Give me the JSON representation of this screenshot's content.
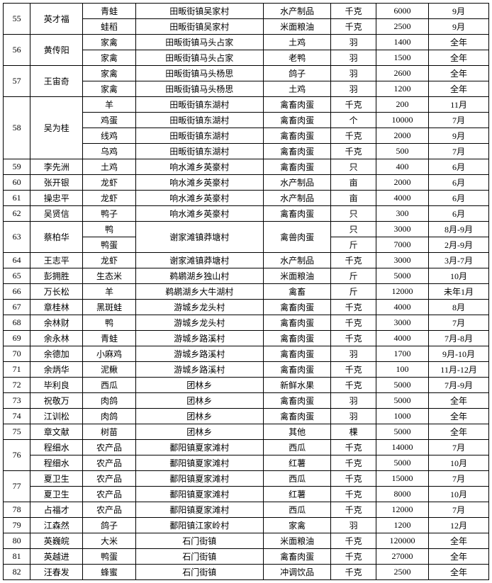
{
  "columns": [
    "idx",
    "name",
    "prod",
    "loc",
    "type",
    "unit",
    "qty",
    "date"
  ],
  "rows": [
    {
      "idx": "55",
      "name": "英才福",
      "prod": "青蛙",
      "loc": "田畈街镇吴家村",
      "type": "水产制品",
      "unit": "千克",
      "qty": "6000",
      "date": "9月",
      "idx_rs": 2,
      "name_rs": 2
    },
    {
      "prod": "蛙稻",
      "loc": "田畈街镇吴家村",
      "type": "米面粮油",
      "unit": "千克",
      "qty": "2500",
      "date": "9月"
    },
    {
      "idx": "56",
      "name": "黄传阳",
      "prod": "家禽",
      "loc": "田畈街镇马头占家",
      "type": "土鸡",
      "unit": "羽",
      "qty": "1400",
      "date": "全年",
      "idx_rs": 2,
      "name_rs": 2
    },
    {
      "prod": "家禽",
      "loc": "田畈街镇马头占家",
      "type": "老鸭",
      "unit": "羽",
      "qty": "1500",
      "date": "全年"
    },
    {
      "idx": "57",
      "name": "王宙奇",
      "prod": "家禽",
      "loc": "田畈街镇马头杨思",
      "type": "鸽子",
      "unit": "羽",
      "qty": "2600",
      "date": "全年",
      "idx_rs": 2,
      "name_rs": 2
    },
    {
      "prod": "家禽",
      "loc": "田畈街镇马头杨思",
      "type": "土鸡",
      "unit": "羽",
      "qty": "1200",
      "date": "全年"
    },
    {
      "idx": "58",
      "name": "吴为桂",
      "prod": "羊",
      "loc": "田畈街镇东湖村",
      "type": "禽畜肉蛋",
      "unit": "千克",
      "qty": "200",
      "date": "11月",
      "idx_rs": 4,
      "name_rs": 4
    },
    {
      "prod": "鸡蛋",
      "loc": "田畈街镇东湖村",
      "type": "禽畜肉蛋",
      "unit": "个",
      "qty": "10000",
      "date": "7月"
    },
    {
      "prod": "线鸡",
      "loc": "田畈街镇东湖村",
      "type": "禽畜肉蛋",
      "unit": "千克",
      "qty": "2000",
      "date": "9月"
    },
    {
      "prod": "乌鸡",
      "loc": "田畈街镇东湖村",
      "type": "禽畜肉蛋",
      "unit": "千克",
      "qty": "500",
      "date": "7月"
    },
    {
      "idx": "59",
      "name": "李先洲",
      "prod": "土鸡",
      "loc": "响水滩乡英豪村",
      "type": "禽畜肉蛋",
      "unit": "只",
      "qty": "400",
      "date": "6月"
    },
    {
      "idx": "60",
      "name": "张开银",
      "prod": "龙虾",
      "loc": "响水滩乡英豪村",
      "type": "水产制品",
      "unit": "亩",
      "qty": "2000",
      "date": "6月"
    },
    {
      "idx": "61",
      "name": "操忠平",
      "prod": "龙虾",
      "loc": "响水滩乡英豪村",
      "type": "水产制品",
      "unit": "亩",
      "qty": "4000",
      "date": "6月"
    },
    {
      "idx": "62",
      "name": "吴贤信",
      "prod": "鸭子",
      "loc": "响水滩乡英豪村",
      "type": "禽畜肉蛋",
      "unit": "只",
      "qty": "300",
      "date": "6月"
    },
    {
      "idx": "63",
      "name": "蔡柏华",
      "prod": "鸭",
      "loc": "谢家滩镇莽塘村",
      "type": "禽兽肉蛋",
      "unit": "只",
      "qty": "3000",
      "date": "8月-9月",
      "idx_rs": 2,
      "name_rs": 2,
      "loc_rs": 2,
      "type_rs": 2
    },
    {
      "prod": "鸭蛋",
      "unit": "斤",
      "qty": "7000",
      "date": "2月-9月"
    },
    {
      "idx": "64",
      "name": "王志平",
      "prod": "龙虾",
      "loc": "谢家滩镇莽塘村",
      "type": "水产制品",
      "unit": "千克",
      "qty": "3000",
      "date": "3月-7月"
    },
    {
      "idx": "65",
      "name": "彭拥胜",
      "prod": "生态米",
      "loc": "鹈鹕湖乡独山村",
      "type": "米面粮油",
      "unit": "斤",
      "qty": "5000",
      "date": "10月"
    },
    {
      "idx": "66",
      "name": "万长松",
      "prod": "羊",
      "loc": "鹈鹕湖乡大牛湖村",
      "type": "禽畜",
      "unit": "斤",
      "qty": "12000",
      "date": "未年1月"
    },
    {
      "idx": "67",
      "name": "章桂林",
      "prod": "黑斑蛙",
      "loc": "游城乡龙头村",
      "type": "禽畜肉蛋",
      "unit": "千克",
      "qty": "4000",
      "date": "8月",
      "dashed": true
    },
    {
      "idx": "68",
      "name": "余林财",
      "prod": "鸭",
      "loc": "游城乡龙头村",
      "type": "禽畜肉蛋",
      "unit": "千克",
      "qty": "3000",
      "date": "7月"
    },
    {
      "idx": "69",
      "name": "余永林",
      "prod": "青蛙",
      "loc": "游城乡路溪村",
      "type": "禽畜肉蛋",
      "unit": "千克",
      "qty": "4000",
      "date": "7月-8月"
    },
    {
      "idx": "70",
      "name": "余德加",
      "prod": "小麻鸡",
      "loc": "游城乡路溪村",
      "type": "禽畜肉蛋",
      "unit": "羽",
      "qty": "1700",
      "date": "9月-10月"
    },
    {
      "idx": "71",
      "name": "余炳华",
      "prod": "泥鳅",
      "loc": "游城乡路溪村",
      "type": "禽畜肉蛋",
      "unit": "千克",
      "qty": "100",
      "date": "11月-12月"
    },
    {
      "idx": "72",
      "name": "毕利良",
      "prod": "西瓜",
      "loc": "团林乡",
      "type": "新鲜水果",
      "unit": "千克",
      "qty": "5000",
      "date": "7月-9月"
    },
    {
      "idx": "73",
      "name": "祝敬万",
      "prod": "肉鸽",
      "loc": "团林乡",
      "type": "禽畜肉蛋",
      "unit": "羽",
      "qty": "5000",
      "date": "全年"
    },
    {
      "idx": "74",
      "name": "江训松",
      "prod": "肉鸽",
      "loc": "团林乡",
      "type": "禽畜肉蛋",
      "unit": "羽",
      "qty": "1000",
      "date": "全年"
    },
    {
      "idx": "75",
      "name": "章文献",
      "prod": "树苗",
      "loc": "团林乡",
      "type": "其他",
      "unit": "棵",
      "qty": "5000",
      "date": "全年"
    },
    {
      "idx": "76",
      "name": "程细水",
      "prod": "农产品",
      "loc": "鄱阳镇夏家滩村",
      "type": "西瓜",
      "unit": "千克",
      "qty": "14000",
      "date": "7月",
      "idx_rs": 2
    },
    {
      "name": "程细水",
      "prod": "农产品",
      "loc": "鄱阳镇夏家滩村",
      "type": "红薯",
      "unit": "千克",
      "qty": "5000",
      "date": "10月"
    },
    {
      "idx": "77",
      "name": "夏卫生",
      "prod": "农产品",
      "loc": "鄱阳镇夏家滩村",
      "type": "西瓜",
      "unit": "千克",
      "qty": "15000",
      "date": "7月",
      "idx_rs": 2
    },
    {
      "name": "夏卫生",
      "prod": "农产品",
      "loc": "鄱阳镇夏家滩村",
      "type": "红薯",
      "unit": "千克",
      "qty": "8000",
      "date": "10月"
    },
    {
      "idx": "78",
      "name": "占福才",
      "prod": "农产品",
      "loc": "鄱阳镇夏家滩村",
      "type": "西瓜",
      "unit": "千克",
      "qty": "12000",
      "date": "7月"
    },
    {
      "idx": "79",
      "name": "江森然",
      "prod": "鸽子",
      "loc": "鄱阳镇江家岭村",
      "type": "家禽",
      "unit": "羽",
      "qty": "1200",
      "date": "12月"
    },
    {
      "idx": "80",
      "name": "英巍皖",
      "prod": "大米",
      "loc": "石门街镇",
      "type": "米面粮油",
      "unit": "千克",
      "qty": "120000",
      "date": "全年"
    },
    {
      "idx": "81",
      "name": "英越进",
      "prod": "鸭蛋",
      "loc": "石门街镇",
      "type": "禽畜肉蛋",
      "unit": "千克",
      "qty": "27000",
      "date": "全年"
    },
    {
      "idx": "82",
      "name": "汪春发",
      "prod": "蜂蜜",
      "loc": "石门街镇",
      "type": "冲调饮品",
      "unit": "千克",
      "qty": "2500",
      "date": "全年"
    }
  ]
}
